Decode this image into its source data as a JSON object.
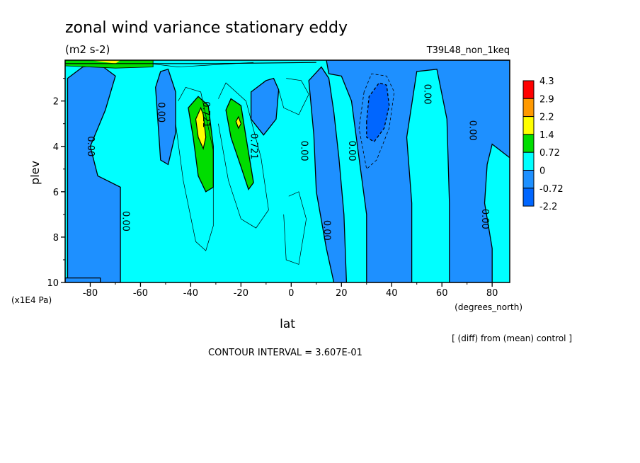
{
  "chart_data": {
    "type": "heatmap",
    "title": "zonal wind variance stationary eddy",
    "subtitle": "(m2 s-2)",
    "experiment": "T39L48_non_1keq",
    "xlabel": "lat",
    "x_units": "(degrees_north)",
    "ylabel": "plev",
    "y_units": "(x1E4 Pa)",
    "xlim": [
      -90,
      87
    ],
    "ylim": [
      10,
      0.2
    ],
    "x_ticks": [
      "-80",
      "-60",
      "-40",
      "-20",
      "0",
      "20",
      "40",
      "60",
      "80"
    ],
    "y_ticks": [
      "2",
      "4",
      "6",
      "8",
      "10"
    ],
    "diff_note": "[ (diff) from (mean) control ]",
    "contour_interval": "CONTOUR INTERVAL = 3.607E-01",
    "legend": {
      "labels": [
        "4.3",
        "2.9",
        "2.2",
        "1.4",
        "0.72",
        "0",
        "-0.72",
        "-2.2"
      ],
      "colors": [
        "#ff0000",
        "#ff9900",
        "#ffff00",
        "#00dd00",
        "#00ffff",
        "#1e90ff",
        "#0066ff"
      ]
    },
    "contour_labels": [
      {
        "text": "0.00",
        "lat": -80,
        "plev": 4.0
      },
      {
        "text": "0.00",
        "lat": -52,
        "plev": 2.5
      },
      {
        "text": "0.00",
        "lat": -66,
        "plev": 7.3
      },
      {
        "text": "0.721",
        "lat": -34,
        "plev": 2.6
      },
      {
        "text": "0.721",
        "lat": -15,
        "plev": 4.0
      },
      {
        "text": "0.00",
        "lat": 5,
        "plev": 4.2
      },
      {
        "text": "0.00",
        "lat": 24,
        "plev": 4.2
      },
      {
        "text": "0.00",
        "lat": 14,
        "plev": 7.7
      },
      {
        "text": "0.00",
        "lat": 54,
        "plev": 1.7
      },
      {
        "text": "0.00",
        "lat": 72,
        "plev": 3.3
      },
      {
        "text": "0.00",
        "lat": 77,
        "plev": 7.2
      }
    ]
  }
}
